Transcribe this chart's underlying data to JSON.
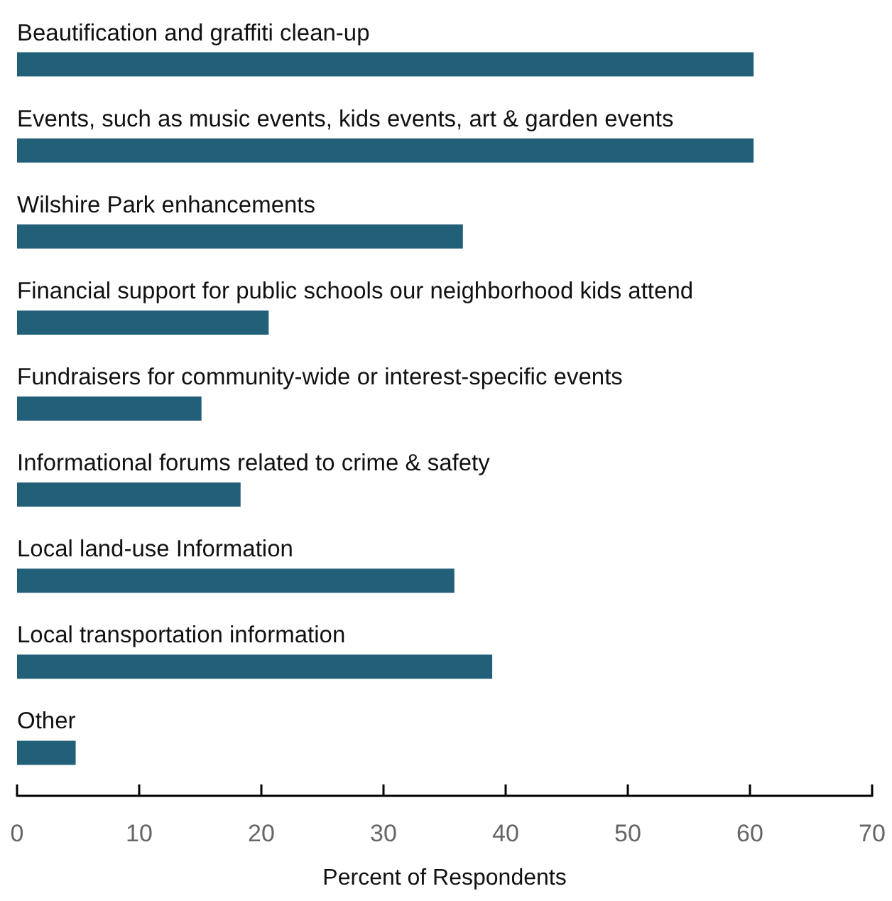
{
  "chart_data": {
    "type": "bar",
    "orientation": "horizontal",
    "xlabel": "Percent of Respondents",
    "categories": [
      "Beautification and graffiti clean-up",
      "Events, such as music events, kids events, art & garden events",
      "Wilshire Park enhancements",
      "Financial support for public schools our neighborhood kids attend",
      "Fundraisers for community-wide or interest-specific events",
      "Informational forums related to crime & safety",
      "Local land-use Information",
      "Local transportation information",
      "Other"
    ],
    "values": [
      60.3,
      60.3,
      36.5,
      20.6,
      15.1,
      18.3,
      35.8,
      38.9,
      4.8
    ],
    "color": "#22607a",
    "xlim": [
      0,
      70
    ],
    "xticks": [
      0,
      10,
      20,
      30,
      40,
      50,
      60,
      70
    ],
    "grid": false
  }
}
